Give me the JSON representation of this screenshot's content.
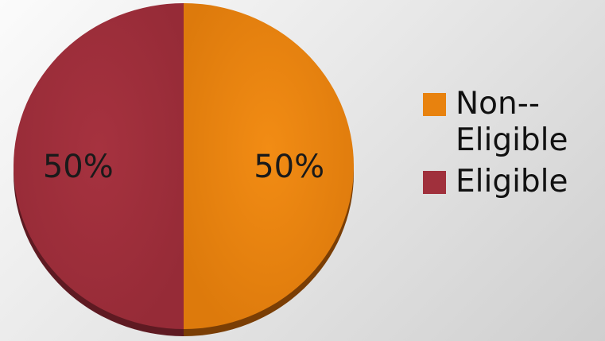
{
  "chart_data": {
    "type": "pie",
    "title": "",
    "slices": [
      {
        "label": "Non-Eligible",
        "value": 50,
        "display": "50%",
        "color": "#E8820E"
      },
      {
        "label": "Eligible",
        "value": 50,
        "display": "50%",
        "color": "#A0303C"
      }
    ],
    "legend": {
      "position": "right",
      "entries": [
        {
          "label": "Non-­Eligible",
          "color": "#E8820E"
        },
        {
          "label": "Eligible",
          "color": "#A0303C"
        }
      ]
    },
    "start_angle": "12 o'clock",
    "direction": "clockwise"
  }
}
